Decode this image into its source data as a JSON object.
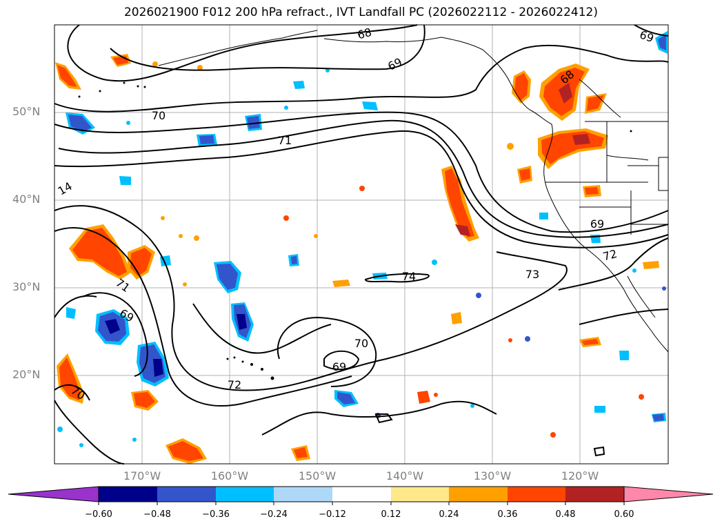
{
  "title": "2026021900 F012 200 hPa refract., IVT Landfall PC (2026022112 - 2026022412)",
  "map": {
    "lat_labels": [
      "50°N",
      "40°N",
      "30°N",
      "20°N"
    ],
    "lon_labels": [
      "170°W",
      "160°W",
      "150°W",
      "140°W",
      "130°W",
      "120°W"
    ],
    "contour_labels": [
      "68",
      "69",
      "70",
      "71",
      "14",
      "71",
      "69",
      "70",
      "72",
      "70",
      "69",
      "74",
      "73",
      "69",
      "72",
      "68",
      "69"
    ]
  },
  "colorbar": {
    "ticks": [
      "−0.60",
      "−0.48",
      "−0.36",
      "−0.24",
      "−0.12",
      "0.12",
      "0.24",
      "0.36",
      "0.48",
      "0.60"
    ],
    "colors": [
      "#9933cc",
      "#00008b",
      "#3355cc",
      "#00bfff",
      "#add8f8",
      "#ffffff",
      "#ffe88a",
      "#ffa000",
      "#ff4500",
      "#b22222",
      "#ff88aa"
    ]
  }
}
